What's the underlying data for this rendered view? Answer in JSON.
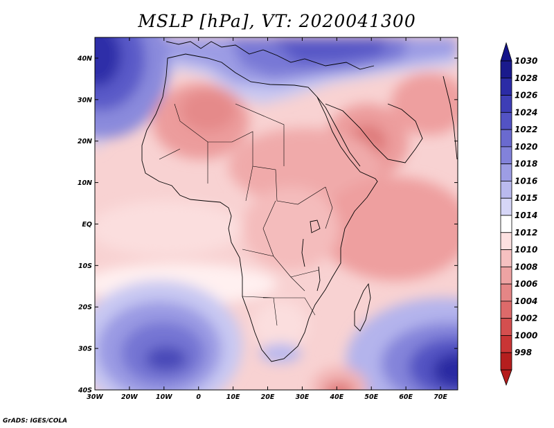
{
  "title": "MSLP [hPa], VT: 2020041300",
  "credit": "GrADS: IGES/COLA",
  "map": {
    "lon_range": [
      -30,
      75
    ],
    "lat_range": [
      -40,
      45
    ],
    "lon_ticks": [
      {
        "value": -30,
        "label": "30W"
      },
      {
        "value": -20,
        "label": "20W"
      },
      {
        "value": -10,
        "label": "10W"
      },
      {
        "value": 0,
        "label": "0"
      },
      {
        "value": 10,
        "label": "10E"
      },
      {
        "value": 20,
        "label": "20E"
      },
      {
        "value": 30,
        "label": "30E"
      },
      {
        "value": 40,
        "label": "40E"
      },
      {
        "value": 50,
        "label": "50E"
      },
      {
        "value": 60,
        "label": "60E"
      },
      {
        "value": 70,
        "label": "70E"
      }
    ],
    "lat_ticks": [
      {
        "value": 40,
        "label": "40N"
      },
      {
        "value": 30,
        "label": "30N"
      },
      {
        "value": 20,
        "label": "20N"
      },
      {
        "value": 10,
        "label": "10N"
      },
      {
        "value": 0,
        "label": "EQ"
      },
      {
        "value": -10,
        "label": "10S"
      },
      {
        "value": -20,
        "label": "20S"
      },
      {
        "value": -30,
        "label": "30S"
      },
      {
        "value": -40,
        "label": "40S"
      }
    ]
  },
  "colorbar": {
    "levels": [
      "1030",
      "1028",
      "1026",
      "1024",
      "1022",
      "1020",
      "1018",
      "1016",
      "1015",
      "1014",
      "1012",
      "1010",
      "1008",
      "1006",
      "1004",
      "1002",
      "1000",
      "998"
    ],
    "colors": [
      "#1a1a8c",
      "#2b2ba6",
      "#3e3eb6",
      "#5353c4",
      "#6a6acf",
      "#8282da",
      "#9d9de4",
      "#babaee",
      "#d6d6f7",
      "#ffffff",
      "#fce0e0",
      "#f6c1c1",
      "#eea3a3",
      "#e58686",
      "#dd6a6a",
      "#d44f4f",
      "#c93535",
      "#b51e1e"
    ],
    "top_color": "#14148a",
    "bottom_color": "#b51c1c"
  }
}
